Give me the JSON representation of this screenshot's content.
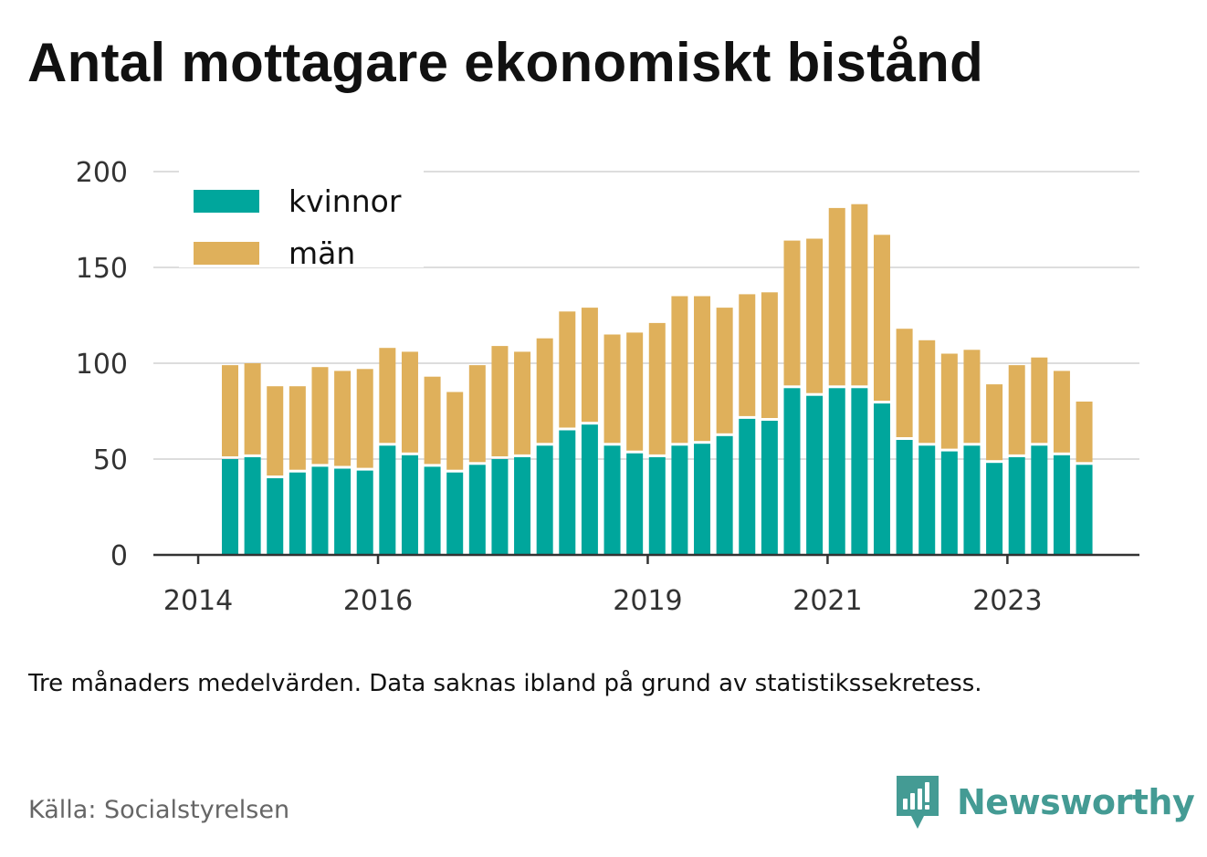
{
  "title": "Antal mottagare ekonomiskt bistånd",
  "note": "Tre månaders medelvärden. Data saknas ibland på grund av statistikssekretess.",
  "source": "Källa: Socialstyrelsen",
  "brand": {
    "name": "Newsworthy",
    "icon": "newsworthy-logo-icon",
    "color": "#449b94"
  },
  "chart_data": {
    "type": "bar",
    "stacked": true,
    "title": "Antal mottagare ekonomiskt bistånd",
    "xlabel": "",
    "ylabel": "",
    "ylim": [
      0,
      200
    ],
    "yticks": [
      0,
      50,
      100,
      150,
      200
    ],
    "x_tick_labels": [
      "2014",
      "2016",
      "2019",
      "2021",
      "2023"
    ],
    "grid": true,
    "legend_position": "top-left",
    "x": [
      "2014-Q2",
      "2014-Q3",
      "2014-Q4",
      "2015-Q1",
      "2015-Q2",
      "2015-Q3",
      "2015-Q4",
      "2016-Q1",
      "2016-Q2",
      "2016-Q3",
      "2016-Q4",
      "2017-Q1",
      "2017-Q2",
      "2017-Q3",
      "2017-Q4",
      "2018-Q1",
      "2018-Q2",
      "2018-Q3",
      "2018-Q4",
      "2019-Q1",
      "2019-Q2",
      "2019-Q3",
      "2019-Q4",
      "2020-Q1",
      "2020-Q2",
      "2020-Q3",
      "2020-Q4",
      "2021-Q1",
      "2021-Q2",
      "2021-Q3",
      "2021-Q4",
      "2022-Q1",
      "2022-Q2",
      "2022-Q3",
      "2022-Q4",
      "2023-Q1",
      "2023-Q2",
      "2023-Q3",
      "2023-Q4"
    ],
    "series": [
      {
        "name": "kvinnor",
        "color": "#00a69c",
        "values": [
          50,
          51,
          40,
          43,
          46,
          45,
          44,
          57,
          52,
          46,
          43,
          47,
          50,
          51,
          57,
          65,
          68,
          57,
          53,
          51,
          57,
          58,
          62,
          71,
          70,
          87,
          83,
          87,
          87,
          79,
          60,
          57,
          54,
          57,
          48,
          51,
          57,
          52,
          47
        ]
      },
      {
        "name": "män",
        "color": "#dfb05b",
        "values": [
          49,
          49,
          48,
          45,
          52,
          51,
          53,
          51,
          54,
          47,
          42,
          52,
          59,
          55,
          56,
          62,
          61,
          58,
          63,
          70,
          78,
          77,
          67,
          65,
          67,
          77,
          82,
          94,
          96,
          88,
          58,
          55,
          51,
          50,
          41,
          48,
          46,
          44,
          33
        ]
      }
    ]
  }
}
